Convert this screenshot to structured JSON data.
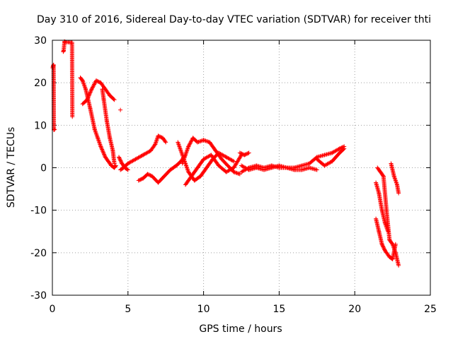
{
  "chart_data": {
    "type": "scatter",
    "title": "Day 310 of 2016, Sidereal Day-to-day VTEC variation (SDTVAR) for receiver thti",
    "xlabel": "GPS time / hours",
    "ylabel": "SDTVAR / TECUs",
    "xlim": [
      0,
      25
    ],
    "ylim": [
      -30,
      30
    ],
    "xticks": [
      "0",
      "5",
      "10",
      "15",
      "20",
      "25"
    ],
    "yticks": [
      "-30",
      "-20",
      "-10",
      "0",
      "10",
      "20",
      "30"
    ],
    "grid": true,
    "marker": "+",
    "color": "#ff0000",
    "series": [
      {
        "x": [
          0.02,
          0.05,
          0.08,
          0.1,
          0.15
        ],
        "y": [
          23.5,
          24.0,
          24.2,
          8.9,
          9.0
        ]
      },
      {
        "x": [
          0.72,
          0.75,
          0.8,
          0.85,
          1.3,
          1.32
        ],
        "y": [
          27.3,
          27.6,
          29.7,
          29.6,
          29.5,
          12.0
        ]
      },
      {
        "x": [
          4.5
        ],
        "y": [
          13.6
        ]
      },
      {
        "x": [
          1.85,
          2.0,
          2.2,
          2.5,
          2.8,
          3.0,
          3.2,
          3.5,
          3.7,
          3.9,
          4.1,
          4.2
        ],
        "y": [
          21.2,
          20.5,
          18.5,
          14.0,
          9.0,
          7.0,
          5.0,
          2.5,
          1.5,
          0.5,
          0.0,
          0.5
        ]
      },
      {
        "x": [
          2.0,
          2.3,
          2.6,
          2.9,
          3.2,
          3.5,
          3.8,
          4.1
        ],
        "y": [
          15.0,
          16.0,
          18.5,
          20.5,
          20.0,
          18.5,
          17.0,
          16.0
        ]
      },
      {
        "x": [
          3.3,
          3.4,
          3.6,
          3.8,
          4.0,
          4.1
        ],
        "y": [
          18.5,
          16.0,
          11.0,
          7.0,
          4.0,
          1.0
        ]
      },
      {
        "x": [
          4.5,
          4.7,
          5.0,
          5.5,
          6.0,
          6.5,
          6.8,
          7.0,
          7.3,
          7.5
        ],
        "y": [
          -0.5,
          0.0,
          1.0,
          2.0,
          3.0,
          4.0,
          5.5,
          7.5,
          7.0,
          6.0
        ]
      },
      {
        "x": [
          4.4,
          4.6,
          4.8,
          5.0
        ],
        "y": [
          2.5,
          1.0,
          0.0,
          -0.5
        ]
      },
      {
        "x": [
          5.7,
          6.0,
          6.3,
          6.6,
          7.0,
          7.4,
          7.8,
          8.2,
          8.5,
          8.8
        ],
        "y": [
          -3.0,
          -2.5,
          -1.5,
          -2.0,
          -3.5,
          -2.0,
          -0.5,
          0.5,
          1.5,
          3.0
        ]
      },
      {
        "x": [
          8.3,
          8.6,
          9.0,
          9.4,
          9.8,
          10.2,
          10.6,
          11.0,
          11.5,
          12.0
        ],
        "y": [
          6.0,
          3.0,
          -1.0,
          -3.0,
          -2.0,
          0.0,
          2.0,
          3.5,
          2.5,
          1.5
        ]
      },
      {
        "x": [
          8.6,
          9.0,
          9.3,
          9.6,
          10.0,
          10.4,
          10.8,
          11.2,
          11.6,
          12.0,
          12.4
        ],
        "y": [
          1.0,
          5.0,
          7.0,
          6.0,
          6.5,
          6.0,
          4.0,
          2.0,
          0.5,
          -1.0,
          -1.5
        ]
      },
      {
        "x": [
          8.8,
          9.2,
          9.6,
          10.0,
          10.5,
          11.0,
          11.5,
          12.0,
          12.5
        ],
        "y": [
          -4.0,
          -2.0,
          0.0,
          2.0,
          3.0,
          0.5,
          -1.0,
          0.0,
          3.0
        ]
      },
      {
        "x": [
          12.4,
          12.7,
          13.0
        ],
        "y": [
          3.5,
          3.0,
          3.5
        ]
      },
      {
        "x": [
          12.5,
          13.0,
          13.5,
          14.0,
          14.5,
          15.0,
          15.5,
          16.0,
          16.5,
          17.0,
          17.5
        ],
        "y": [
          0.5,
          -0.5,
          0.0,
          -0.5,
          0.0,
          0.5,
          0.0,
          -0.5,
          -0.5,
          0.0,
          -0.5
        ]
      },
      {
        "x": [
          12.5,
          13.0,
          13.5,
          14.0,
          14.5,
          15.0,
          15.5,
          16.0
        ],
        "y": [
          -1.0,
          0.0,
          0.5,
          0.0,
          0.5,
          0.0,
          0.0,
          0.0
        ]
      },
      {
        "x": [
          16.0,
          16.5,
          17.0,
          17.5,
          18.0,
          18.5,
          19.0,
          19.3
        ],
        "y": [
          0.0,
          0.5,
          1.0,
          2.5,
          3.0,
          3.5,
          4.5,
          5.0
        ]
      },
      {
        "x": [
          17.5,
          18.0,
          18.5,
          19.0,
          19.3
        ],
        "y": [
          2.0,
          0.5,
          1.5,
          3.5,
          4.5
        ]
      },
      {
        "x": [
          21.5,
          21.7,
          21.9,
          22.1,
          22.3,
          22.5,
          22.7,
          22.9
        ],
        "y": [
          0.0,
          -1.0,
          -2.0,
          -10.0,
          -17.0,
          -18.0,
          -20.0,
          -23.0
        ]
      },
      {
        "x": [
          21.4,
          21.6,
          21.8,
          22.0,
          22.2
        ],
        "y": [
          -3.5,
          -6.0,
          -10.0,
          -13.0,
          -15.0
        ]
      },
      {
        "x": [
          21.4,
          21.6,
          21.8,
          22.0,
          22.3,
          22.5,
          22.7
        ],
        "y": [
          -12.0,
          -15.0,
          -18.0,
          -19.5,
          -21.0,
          -21.5,
          -18.0
        ]
      },
      {
        "x": [
          22.4,
          22.6,
          22.8,
          22.9
        ],
        "y": [
          1.0,
          -2.0,
          -4.0,
          -6.0
        ]
      }
    ]
  }
}
